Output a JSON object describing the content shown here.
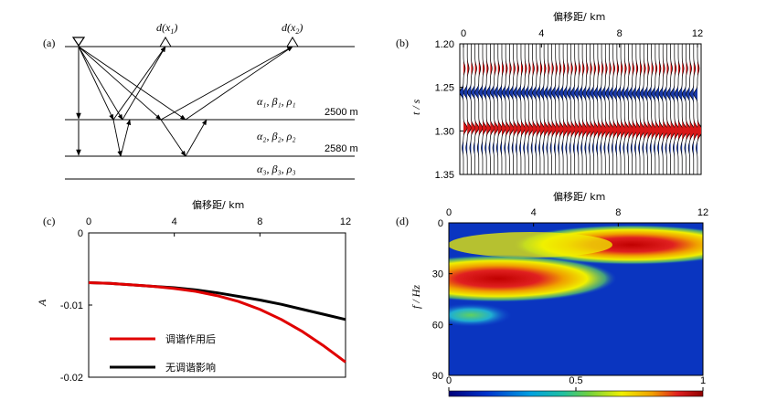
{
  "panel_a": {
    "label": "(a)",
    "receiver1": "d(x",
    "receiver1_sub": "1",
    "receiver2": "d(x",
    "receiver2_sub": "2",
    "layer1_params": "α₁, β₁, ρ₁",
    "layer2_params": "α₂, β₂, ρ₂",
    "layer3_params": "α₃, β₃, ρ₃",
    "depth1": "2500 m",
    "depth2": "2580 m"
  },
  "panel_b": {
    "label": "(b)",
    "title": "偏移距/ km",
    "ylabel": "t / s",
    "x_ticks": [
      "0",
      "4",
      "8",
      "12"
    ],
    "y_ticks": [
      "1.20",
      "1.25",
      "1.30",
      "1.35"
    ]
  },
  "panel_c": {
    "label": "(c)",
    "title": "偏移距/ km",
    "ylabel": "A",
    "x_ticks": [
      "0",
      "4",
      "8",
      "12"
    ],
    "y_ticks": [
      "0",
      "-0.01",
      "-0.02"
    ],
    "legend": {
      "red": "调谐作用后",
      "black": "无调谐影响"
    }
  },
  "panel_d": {
    "label": "(d)",
    "title": "偏移距/ km",
    "ylabel": "f / Hz",
    "x_ticks": [
      "0",
      "4",
      "8",
      "12"
    ],
    "y_ticks": [
      "0",
      "30",
      "60",
      "90"
    ],
    "colorbar_ticks": [
      "0",
      "0.5",
      "1"
    ]
  },
  "chart_data": [
    {
      "type": "line",
      "panel": "c",
      "xlabel": "偏移距/ km",
      "ylabel": "A",
      "xlim": [
        0,
        12
      ],
      "ylim": [
        -0.02,
        0
      ],
      "series": [
        {
          "name": "调谐作用后",
          "color": "#e00000",
          "x": [
            0,
            1,
            2,
            3,
            4,
            5,
            6,
            7,
            8,
            9,
            10,
            11,
            12
          ],
          "values": [
            -0.0069,
            -0.007,
            -0.0072,
            -0.0074,
            -0.0077,
            -0.0081,
            -0.0087,
            -0.0095,
            -0.0106,
            -0.012,
            -0.0137,
            -0.0157,
            -0.0179
          ]
        },
        {
          "name": "无调谐影响",
          "color": "#000000",
          "x": [
            0,
            1,
            2,
            3,
            4,
            5,
            6,
            7,
            8,
            9,
            10,
            11,
            12
          ],
          "values": [
            -0.0069,
            -0.007,
            -0.0072,
            -0.0074,
            -0.0076,
            -0.0079,
            -0.0083,
            -0.0088,
            -0.0093,
            -0.0099,
            -0.0106,
            -0.0113,
            -0.012
          ]
        }
      ]
    }
  ]
}
